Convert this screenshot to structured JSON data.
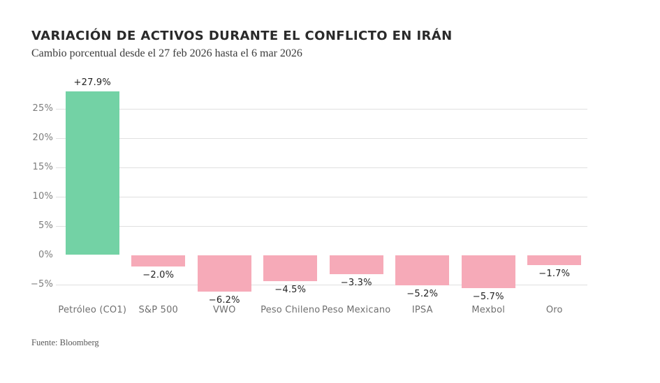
{
  "chart_data": {
    "type": "bar",
    "title": "VARIACIÓN DE ACTIVOS DURANTE EL CONFLICTO EN IRÁN",
    "subtitle": "Cambio porcentual desde el 27 feb 2026 hasta el 6 mar 2026",
    "source": "Fuente: Bloomberg",
    "xlabel": "",
    "ylabel": "",
    "categories": [
      "Petróleo (CO1)",
      "S&P 500",
      "VWO",
      "Peso Chileno",
      "Peso Mexicano",
      "IPSA",
      "Mexbol",
      "Oro"
    ],
    "values": [
      27.9,
      -2.0,
      -6.2,
      -4.5,
      -3.3,
      -5.2,
      -5.7,
      -1.7
    ],
    "value_labels": [
      "+27.9%",
      "−2.0%",
      "−6.2%",
      "−4.5%",
      "−3.3%",
      "−5.2%",
      "−5.7%",
      "−1.7%"
    ],
    "yticks": [
      {
        "label": "25%",
        "value": 25,
        "line": true
      },
      {
        "label": "20%",
        "value": 20,
        "line": true
      },
      {
        "label": "15%",
        "value": 15,
        "line": true
      },
      {
        "label": "10%",
        "value": 10,
        "line": true
      },
      {
        "label": "5%",
        "value": 5,
        "line": true
      },
      {
        "label": "0%",
        "value": 0,
        "line": false
      },
      {
        "label": "−5%",
        "value": -5,
        "line": true
      }
    ],
    "ylim": [
      -7,
      28.5
    ],
    "grid": "horizontal",
    "legend": "none",
    "colors": {
      "positive": "#73d2a5",
      "negative": "#f6aab8",
      "gridline": "#e0e0e0"
    }
  }
}
